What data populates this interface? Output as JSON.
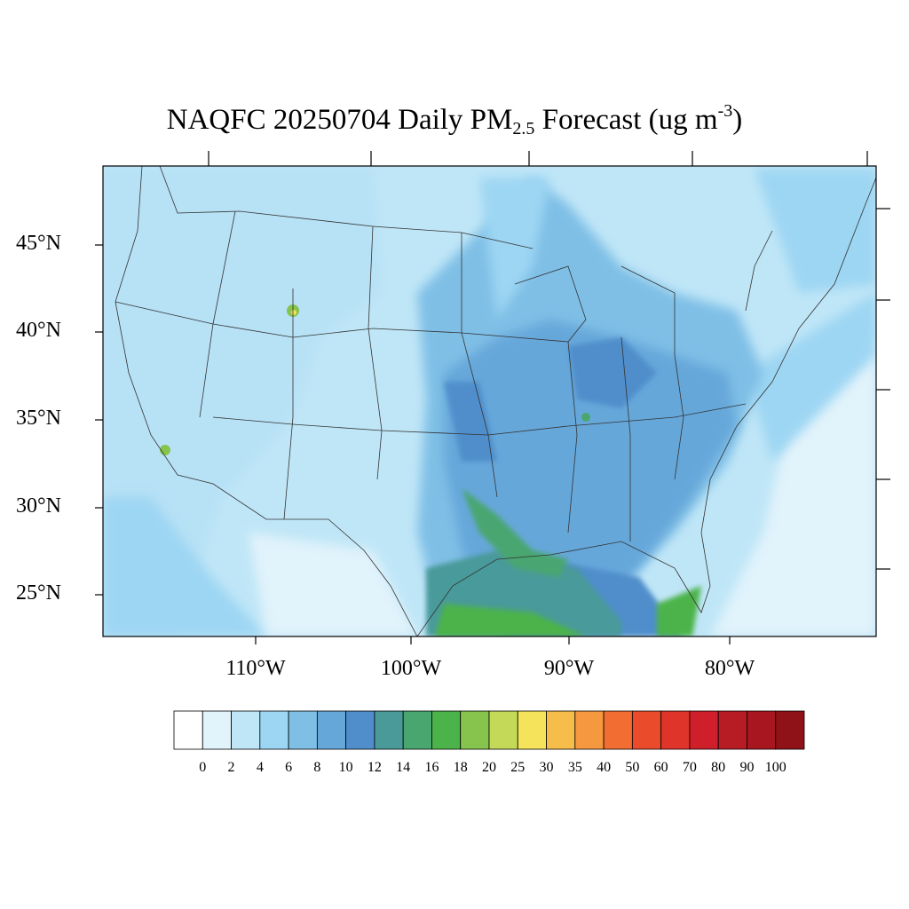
{
  "title": {
    "prefix": "NAQFC 20250704 Daily PM",
    "subscript": "2.5",
    "middle": " Forecast (ug m",
    "superscript": "-3",
    "suffix": ")"
  },
  "map": {
    "latitude_labels": [
      "45°N",
      "40°N",
      "35°N",
      "30°N",
      "25°N"
    ],
    "longitude_labels": [
      "110°W",
      "100°W",
      "90°W",
      "80°W"
    ]
  },
  "colorbar": {
    "levels": [
      "0",
      "2",
      "4",
      "6",
      "8",
      "10",
      "12",
      "14",
      "16",
      "18",
      "20",
      "25",
      "30",
      "35",
      "40",
      "50",
      "60",
      "70",
      "80",
      "90",
      "100"
    ],
    "colors": [
      "#ffffff",
      "#e1f3fb",
      "#bfe6f7",
      "#9dd6f3",
      "#7fbfe6",
      "#66a7da",
      "#4f8ecb",
      "#4a9a9a",
      "#4aa66f",
      "#4cb34a",
      "#86c44d",
      "#c4d957",
      "#f5e45b",
      "#f7bd4b",
      "#f5983f",
      "#f26d31",
      "#ea4c2b",
      "#de342a",
      "#cf1f2b",
      "#b71c25",
      "#a8161f",
      "#8f1218"
    ]
  }
}
